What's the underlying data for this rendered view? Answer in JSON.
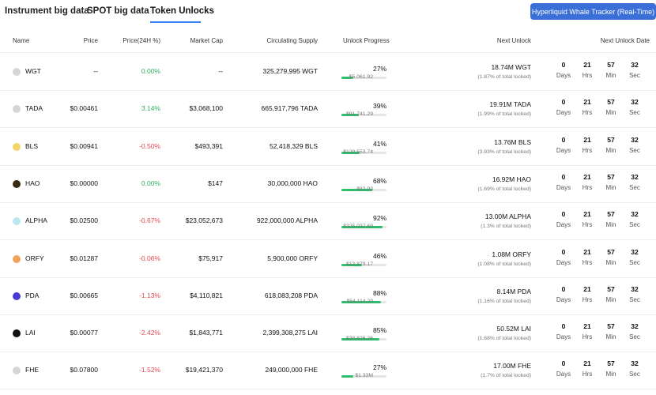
{
  "tabs": [
    {
      "label": "Instrument big data"
    },
    {
      "label": "SPOT big data"
    },
    {
      "label": "Token Unlocks"
    }
  ],
  "cta_label": "Hyperliquid Whale Tracker (Real-Time)",
  "headers": {
    "name": "Name",
    "price": "Price",
    "change": "Price(24H %)",
    "cap": "Market Cap",
    "supply": "Circulating Supply",
    "progress": "Unlock Progress",
    "next_unlock": "Next Unlock",
    "next_date": "Next Unlock Date"
  },
  "countdown_labels": [
    "Days",
    "Hrs",
    "Min",
    "Sec"
  ],
  "colors": {
    "accent": "#3b6fd8",
    "positive": "#2fae5d",
    "negative": "#e0474c",
    "progress": "#2fbf6c"
  },
  "rows": [
    {
      "icon": "wgt-coin-icon",
      "icon_color": "#d6d6d6",
      "symbol": "WGT",
      "price": "--",
      "change": "0.00%",
      "trend": "green",
      "cap": "--",
      "supply": "325,279,995 WGT",
      "progress": "27%",
      "progress_value": 27,
      "unlock_amount": "18.74M WGT",
      "unlock_value": "$5,061.92",
      "unlock_pct": "(1.87% of total locked)",
      "cd": [
        "0",
        "21",
        "57",
        "32"
      ]
    },
    {
      "icon": "tada-coin-icon",
      "icon_color": "#d6d6d6",
      "symbol": "TADA",
      "price": "$0.00461",
      "change": "3.14%",
      "trend": "green",
      "cap": "$3,068,100",
      "supply": "665,917,796 TADA",
      "progress": "39%",
      "progress_value": 39,
      "unlock_amount": "19.91M TADA",
      "unlock_value": "$91,741.29",
      "unlock_pct": "(1.99% of total locked)",
      "cd": [
        "0",
        "21",
        "57",
        "32"
      ]
    },
    {
      "icon": "bls-coin-icon",
      "icon_color": "#f3d56b",
      "symbol": "BLS",
      "price": "$0.00941",
      "change": "-0.50%",
      "trend": "red",
      "cap": "$493,391",
      "supply": "52,418,329 BLS",
      "progress": "41%",
      "progress_value": 41,
      "unlock_amount": "13.76M BLS",
      "unlock_value": "$129,553.74",
      "unlock_pct": "(3.93% of total locked)",
      "cd": [
        "0",
        "21",
        "57",
        "32"
      ]
    },
    {
      "icon": "hao-coin-icon",
      "icon_color": "#3a2a14",
      "symbol": "HAO",
      "price": "$0.00000",
      "change": "0.00%",
      "trend": "green",
      "cap": "$147",
      "supply": "30,000,000 HAO",
      "progress": "68%",
      "progress_value": 68,
      "unlock_amount": "16.92M HAO",
      "unlock_value": "$82.93",
      "unlock_pct": "(1.69% of total locked)",
      "cd": [
        "0",
        "21",
        "57",
        "32"
      ]
    },
    {
      "icon": "alpha-coin-icon",
      "icon_color": "#bfe6f3",
      "symbol": "ALPHA",
      "price": "$0.02500",
      "change": "-0.67%",
      "trend": "red",
      "cap": "$23,052,673",
      "supply": "922,000,000 ALPHA",
      "progress": "92%",
      "progress_value": 92,
      "unlock_amount": "13.00M ALPHA",
      "unlock_value": "$325,037.69",
      "unlock_pct": "(1.3% of total locked)",
      "cd": [
        "0",
        "21",
        "57",
        "32"
      ]
    },
    {
      "icon": "orfy-coin-icon",
      "icon_color": "#f0a35b",
      "symbol": "ORFY",
      "price": "$0.01287",
      "change": "-0.06%",
      "trend": "red",
      "cap": "$75,917",
      "supply": "5,900,000 ORFY",
      "progress": "46%",
      "progress_value": 46,
      "unlock_amount": "1.08M ORFY",
      "unlock_value": "$13,879.17",
      "unlock_pct": "(1.08% of total locked)",
      "cd": [
        "0",
        "21",
        "57",
        "32"
      ]
    },
    {
      "icon": "pda-coin-icon",
      "icon_color": "#4b3bd6",
      "symbol": "PDA",
      "price": "$0.00665",
      "change": "-1.13%",
      "trend": "red",
      "cap": "$4,110,821",
      "supply": "618,083,208 PDA",
      "progress": "88%",
      "progress_value": 88,
      "unlock_amount": "8.14M PDA",
      "unlock_value": "$54,114.29",
      "unlock_pct": "(1.16% of total locked)",
      "cd": [
        "0",
        "21",
        "57",
        "32"
      ]
    },
    {
      "icon": "lai-coin-icon",
      "icon_color": "#111111",
      "symbol": "LAI",
      "price": "$0.00077",
      "change": "-2.42%",
      "trend": "red",
      "cap": "$1,843,771",
      "supply": "2,399,308,275 LAI",
      "progress": "85%",
      "progress_value": 85,
      "unlock_amount": "50.52M LAI",
      "unlock_value": "$38,826.26",
      "unlock_pct": "(1.68% of total locked)",
      "cd": [
        "0",
        "21",
        "57",
        "32"
      ]
    },
    {
      "icon": "fhe-coin-icon",
      "icon_color": "#d6d6d6",
      "symbol": "FHE",
      "price": "$0.07800",
      "change": "-1.52%",
      "trend": "red",
      "cap": "$19,421,370",
      "supply": "249,000,000 FHE",
      "progress": "27%",
      "progress_value": 27,
      "unlock_amount": "17.00M FHE",
      "unlock_value": "$1.33M",
      "unlock_pct": "(1.7% of total locked)",
      "cd": [
        "0",
        "21",
        "57",
        "32"
      ]
    }
  ]
}
